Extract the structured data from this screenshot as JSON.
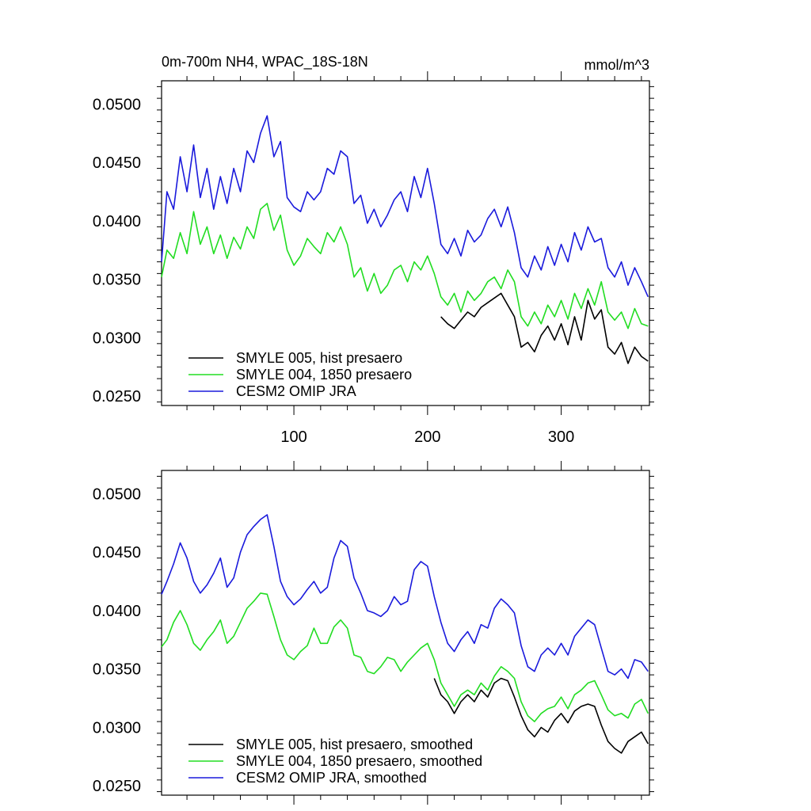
{
  "chart_data": [
    {
      "type": "line",
      "title_left": "0m-700m NH4, WPAC_18S-18N",
      "title_right": "mmol/m^3",
      "xlim": [
        1,
        366
      ],
      "ylim": [
        0.0242,
        0.052
      ],
      "yticks": [
        0.025,
        0.03,
        0.035,
        0.04,
        0.045,
        0.05
      ],
      "ytick_labels": [
        "0.0250",
        "0.0300",
        "0.0350",
        "0.0400",
        "0.0450",
        "0.0500"
      ],
      "xticks": [
        100,
        200,
        300
      ],
      "xtick_labels": [
        "100",
        "200",
        "300"
      ],
      "legend_position": "bottom-left",
      "series": [
        {
          "name": "SMYLE 005, hist presaero",
          "color": "#000000",
          "x": [
            210,
            215,
            220,
            225,
            230,
            235,
            240,
            245,
            250,
            255,
            260,
            265,
            270,
            275,
            280,
            285,
            290,
            295,
            300,
            305,
            310,
            315,
            320,
            325,
            330,
            335,
            340,
            345,
            350,
            355,
            360,
            365
          ],
          "values": [
            0.0318,
            0.0312,
            0.0308,
            0.0315,
            0.0322,
            0.0318,
            0.0326,
            0.033,
            0.0334,
            0.0338,
            0.0328,
            0.0318,
            0.0292,
            0.0296,
            0.0288,
            0.0302,
            0.031,
            0.0298,
            0.0312,
            0.0294,
            0.0318,
            0.0298,
            0.0332,
            0.0316,
            0.0324,
            0.0292,
            0.0286,
            0.0296,
            0.0278,
            0.0292,
            0.0284,
            0.028
          ]
        },
        {
          "name": "SMYLE 004, 1850 presaero",
          "color": "#22dd22",
          "x": [
            1,
            5,
            10,
            15,
            20,
            25,
            30,
            35,
            40,
            45,
            50,
            55,
            60,
            65,
            70,
            75,
            80,
            85,
            90,
            95,
            100,
            105,
            110,
            115,
            120,
            125,
            130,
            135,
            140,
            145,
            150,
            155,
            160,
            165,
            170,
            175,
            180,
            185,
            190,
            195,
            200,
            205,
            210,
            215,
            220,
            225,
            230,
            235,
            240,
            245,
            250,
            255,
            260,
            265,
            270,
            275,
            280,
            285,
            290,
            295,
            300,
            305,
            310,
            315,
            320,
            325,
            330,
            335,
            340,
            345,
            350,
            355,
            360,
            365
          ],
          "values": [
            0.0352,
            0.0375,
            0.0368,
            0.039,
            0.0372,
            0.0408,
            0.038,
            0.0395,
            0.0372,
            0.0388,
            0.0368,
            0.0386,
            0.0376,
            0.0395,
            0.0385,
            0.041,
            0.0415,
            0.0392,
            0.0405,
            0.0375,
            0.0362,
            0.037,
            0.0385,
            0.0378,
            0.0372,
            0.039,
            0.0382,
            0.0395,
            0.038,
            0.0352,
            0.036,
            0.034,
            0.0355,
            0.0338,
            0.0345,
            0.0358,
            0.0362,
            0.0348,
            0.0365,
            0.0358,
            0.037,
            0.0355,
            0.0335,
            0.0328,
            0.0338,
            0.0322,
            0.034,
            0.0332,
            0.0338,
            0.0348,
            0.0352,
            0.0342,
            0.0358,
            0.0348,
            0.0318,
            0.031,
            0.0322,
            0.0312,
            0.0328,
            0.0318,
            0.0332,
            0.0316,
            0.0338,
            0.0325,
            0.0342,
            0.0328,
            0.0348,
            0.0322,
            0.0315,
            0.0322,
            0.0308,
            0.0325,
            0.0312,
            0.031
          ]
        },
        {
          "name": "CESM2 OMIP JRA",
          "color": "#1a1adc",
          "x": [
            1,
            5,
            10,
            15,
            20,
            25,
            30,
            35,
            40,
            45,
            50,
            55,
            60,
            65,
            70,
            75,
            80,
            85,
            90,
            95,
            100,
            105,
            110,
            115,
            120,
            125,
            130,
            135,
            140,
            145,
            150,
            155,
            160,
            165,
            170,
            175,
            180,
            185,
            190,
            195,
            200,
            205,
            210,
            215,
            220,
            225,
            230,
            235,
            240,
            245,
            250,
            255,
            260,
            265,
            270,
            275,
            280,
            285,
            290,
            295,
            300,
            305,
            310,
            315,
            320,
            325,
            330,
            335,
            340,
            345,
            350,
            355,
            360,
            365
          ],
          "values": [
            0.0365,
            0.0425,
            0.041,
            0.0455,
            0.0425,
            0.0465,
            0.042,
            0.0445,
            0.041,
            0.0438,
            0.0415,
            0.0445,
            0.0425,
            0.046,
            0.045,
            0.0475,
            0.049,
            0.0455,
            0.0468,
            0.042,
            0.0412,
            0.0408,
            0.0425,
            0.0418,
            0.0425,
            0.0445,
            0.044,
            0.046,
            0.0455,
            0.0415,
            0.0422,
            0.0398,
            0.041,
            0.0395,
            0.0405,
            0.0418,
            0.0425,
            0.0408,
            0.0438,
            0.042,
            0.0445,
            0.0415,
            0.038,
            0.0372,
            0.0385,
            0.037,
            0.0392,
            0.0382,
            0.0388,
            0.0402,
            0.041,
            0.0395,
            0.0412,
            0.039,
            0.036,
            0.0352,
            0.037,
            0.0358,
            0.0378,
            0.0362,
            0.038,
            0.0365,
            0.039,
            0.0375,
            0.0395,
            0.0382,
            0.0385,
            0.036,
            0.0352,
            0.0365,
            0.0345,
            0.036,
            0.0348,
            0.0335
          ]
        }
      ]
    },
    {
      "type": "line",
      "title_left": "",
      "title_right": "",
      "xlim": [
        1,
        366
      ],
      "ylim": [
        0.0242,
        0.052
      ],
      "yticks": [
        0.025,
        0.03,
        0.035,
        0.04,
        0.045,
        0.05
      ],
      "ytick_labels": [
        "0.0250",
        "0.0300",
        "0.0350",
        "0.0400",
        "0.0450",
        "0.0500"
      ],
      "xticks": [
        100,
        200,
        300
      ],
      "xtick_labels": [],
      "legend_position": "bottom-left",
      "series": [
        {
          "name": "SMYLE 005, hist presaero, smoothed",
          "color": "#000000",
          "x": [
            205,
            210,
            215,
            220,
            225,
            230,
            235,
            240,
            245,
            250,
            255,
            260,
            265,
            270,
            275,
            280,
            285,
            290,
            295,
            300,
            305,
            310,
            315,
            320,
            325,
            330,
            335,
            340,
            345,
            350,
            355,
            360,
            365
          ],
          "values": [
            0.0342,
            0.0328,
            0.0322,
            0.0312,
            0.0322,
            0.0328,
            0.0322,
            0.0332,
            0.0326,
            0.0338,
            0.0342,
            0.034,
            0.0326,
            0.031,
            0.0298,
            0.0292,
            0.03,
            0.0296,
            0.0306,
            0.0312,
            0.0304,
            0.0314,
            0.0318,
            0.032,
            0.0318,
            0.0302,
            0.0288,
            0.0282,
            0.0278,
            0.0288,
            0.0292,
            0.0296,
            0.0286
          ]
        },
        {
          "name": "SMYLE 004, 1850 presaero, smoothed",
          "color": "#22dd22",
          "x": [
            1,
            5,
            10,
            15,
            20,
            25,
            30,
            35,
            40,
            45,
            50,
            55,
            60,
            65,
            70,
            75,
            80,
            85,
            90,
            95,
            100,
            105,
            110,
            115,
            120,
            125,
            130,
            135,
            140,
            145,
            150,
            155,
            160,
            165,
            170,
            175,
            180,
            185,
            190,
            195,
            200,
            205,
            210,
            215,
            220,
            225,
            230,
            235,
            240,
            245,
            250,
            255,
            260,
            265,
            270,
            275,
            280,
            285,
            290,
            295,
            300,
            305,
            310,
            315,
            320,
            325,
            330,
            335,
            340,
            345,
            350,
            355,
            360,
            365
          ],
          "values": [
            0.0369,
            0.0375,
            0.039,
            0.04,
            0.0388,
            0.0372,
            0.0366,
            0.0375,
            0.0382,
            0.0392,
            0.0372,
            0.0378,
            0.039,
            0.0402,
            0.0408,
            0.0415,
            0.0414,
            0.0395,
            0.0375,
            0.0362,
            0.0358,
            0.0365,
            0.037,
            0.0385,
            0.0372,
            0.0372,
            0.0386,
            0.0392,
            0.0385,
            0.0362,
            0.036,
            0.0348,
            0.0346,
            0.0352,
            0.036,
            0.0358,
            0.0348,
            0.0356,
            0.0362,
            0.0368,
            0.0372,
            0.0358,
            0.0338,
            0.0328,
            0.0318,
            0.0328,
            0.0332,
            0.0328,
            0.0338,
            0.0332,
            0.0344,
            0.0352,
            0.0348,
            0.0342,
            0.0322,
            0.031,
            0.0305,
            0.0312,
            0.0316,
            0.0318,
            0.0326,
            0.0316,
            0.0328,
            0.0332,
            0.0338,
            0.034,
            0.0328,
            0.0315,
            0.031,
            0.0312,
            0.0308,
            0.032,
            0.0324,
            0.0312
          ]
        },
        {
          "name": "CESM2 OMIP JRA, smoothed",
          "color": "#1a1adc",
          "x": [
            1,
            5,
            10,
            15,
            20,
            25,
            30,
            35,
            40,
            45,
            50,
            55,
            60,
            65,
            70,
            75,
            80,
            85,
            90,
            95,
            100,
            105,
            110,
            115,
            120,
            125,
            130,
            135,
            140,
            145,
            150,
            155,
            160,
            165,
            170,
            175,
            180,
            185,
            190,
            195,
            200,
            205,
            210,
            215,
            220,
            225,
            230,
            235,
            240,
            245,
            250,
            255,
            260,
            265,
            270,
            275,
            280,
            285,
            290,
            295,
            300,
            305,
            310,
            315,
            320,
            325,
            330,
            335,
            340,
            345,
            350,
            355,
            360,
            365
          ],
          "values": [
            0.0414,
            0.0425,
            0.044,
            0.0458,
            0.0445,
            0.0425,
            0.0415,
            0.0422,
            0.0432,
            0.0445,
            0.042,
            0.0428,
            0.045,
            0.0465,
            0.0472,
            0.0478,
            0.0482,
            0.0455,
            0.0425,
            0.0412,
            0.0405,
            0.041,
            0.0418,
            0.0425,
            0.0415,
            0.042,
            0.0445,
            0.046,
            0.0455,
            0.0428,
            0.0415,
            0.04,
            0.0398,
            0.0395,
            0.04,
            0.0412,
            0.0405,
            0.0408,
            0.0435,
            0.0442,
            0.0438,
            0.0412,
            0.039,
            0.0372,
            0.0365,
            0.0375,
            0.0382,
            0.0372,
            0.0388,
            0.0385,
            0.0402,
            0.041,
            0.0405,
            0.0398,
            0.037,
            0.0352,
            0.0348,
            0.0362,
            0.0368,
            0.0362,
            0.0372,
            0.0362,
            0.0378,
            0.0385,
            0.0392,
            0.0388,
            0.0368,
            0.0348,
            0.0345,
            0.035,
            0.0342,
            0.0358,
            0.0356,
            0.0348
          ]
        }
      ]
    }
  ]
}
